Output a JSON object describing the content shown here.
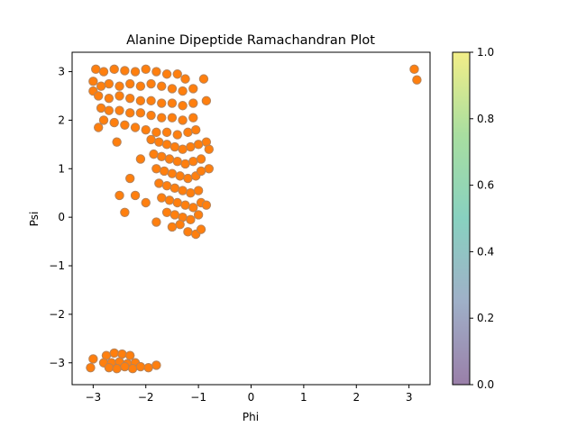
{
  "chart_data": {
    "type": "scatter",
    "title": "Alanine Dipeptide Ramachandran Plot",
    "xlabel": "Phi",
    "ylabel": "Psi",
    "xlim": [
      -3.4,
      3.4
    ],
    "ylim": [
      -3.45,
      3.4
    ],
    "xticks": [
      -3,
      -2,
      -1,
      0,
      1,
      2,
      3
    ],
    "yticks": [
      -3,
      -2,
      -1,
      0,
      1,
      2,
      3
    ],
    "grid": false,
    "point_colors": {
      "outer": "#b5835a",
      "core": "#ff7f0e"
    },
    "colorbar": {
      "range": [
        0,
        1
      ],
      "ticks": [
        "0.0",
        "0.2",
        "0.4",
        "0.6",
        "0.8",
        "1.0"
      ],
      "colors": [
        "#9a7fa9",
        "#9fb0c8",
        "#88d1c0",
        "#a8dea0",
        "#f2ee88"
      ]
    },
    "series": [
      {
        "points": [
          [
            -2.95,
            3.05
          ],
          [
            -2.8,
            3.0
          ],
          [
            -2.6,
            3.05
          ],
          [
            -2.4,
            3.02
          ],
          [
            -2.2,
            3.0
          ],
          [
            -2.0,
            3.05
          ],
          [
            -1.8,
            3.0
          ],
          [
            -1.6,
            2.95
          ],
          [
            -1.4,
            2.95
          ],
          [
            -1.25,
            2.85
          ],
          [
            -3.0,
            2.8
          ],
          [
            -2.85,
            2.7
          ],
          [
            -2.7,
            2.75
          ],
          [
            -2.5,
            2.7
          ],
          [
            -2.3,
            2.75
          ],
          [
            -2.1,
            2.7
          ],
          [
            -1.9,
            2.75
          ],
          [
            -1.7,
            2.7
          ],
          [
            -1.5,
            2.65
          ],
          [
            -1.3,
            2.6
          ],
          [
            -1.1,
            2.65
          ],
          [
            -3.0,
            2.6
          ],
          [
            -2.9,
            2.5
          ],
          [
            -2.7,
            2.45
          ],
          [
            -2.5,
            2.5
          ],
          [
            -2.3,
            2.45
          ],
          [
            -2.1,
            2.4
          ],
          [
            -1.9,
            2.4
          ],
          [
            -1.7,
            2.35
          ],
          [
            -1.5,
            2.35
          ],
          [
            -1.3,
            2.3
          ],
          [
            -1.1,
            2.35
          ],
          [
            -2.85,
            2.25
          ],
          [
            -2.7,
            2.2
          ],
          [
            -2.5,
            2.2
          ],
          [
            -2.3,
            2.15
          ],
          [
            -2.1,
            2.15
          ],
          [
            -1.9,
            2.1
          ],
          [
            -1.7,
            2.05
          ],
          [
            -1.5,
            2.05
          ],
          [
            -1.3,
            2.0
          ],
          [
            -1.1,
            2.05
          ],
          [
            -2.8,
            2.0
          ],
          [
            -2.6,
            1.95
          ],
          [
            -2.4,
            1.9
          ],
          [
            -2.2,
            1.85
          ],
          [
            -2.0,
            1.8
          ],
          [
            -1.8,
            1.75
          ],
          [
            -1.6,
            1.75
          ],
          [
            -1.4,
            1.7
          ],
          [
            -1.2,
            1.75
          ],
          [
            -1.05,
            1.8
          ],
          [
            -1.9,
            1.6
          ],
          [
            -1.75,
            1.55
          ],
          [
            -1.6,
            1.5
          ],
          [
            -1.45,
            1.45
          ],
          [
            -1.3,
            1.4
          ],
          [
            -1.15,
            1.45
          ],
          [
            -1.0,
            1.5
          ],
          [
            -1.85,
            1.3
          ],
          [
            -1.7,
            1.25
          ],
          [
            -1.55,
            1.2
          ],
          [
            -1.4,
            1.15
          ],
          [
            -1.25,
            1.1
          ],
          [
            -1.1,
            1.15
          ],
          [
            -0.95,
            1.2
          ],
          [
            -1.8,
            1.0
          ],
          [
            -1.65,
            0.95
          ],
          [
            -1.5,
            0.9
          ],
          [
            -1.35,
            0.85
          ],
          [
            -1.2,
            0.8
          ],
          [
            -1.05,
            0.85
          ],
          [
            -0.95,
            0.95
          ],
          [
            -1.75,
            0.7
          ],
          [
            -1.6,
            0.65
          ],
          [
            -1.45,
            0.6
          ],
          [
            -1.3,
            0.55
          ],
          [
            -1.15,
            0.5
          ],
          [
            -1.0,
            0.55
          ],
          [
            -1.7,
            0.4
          ],
          [
            -1.55,
            0.35
          ],
          [
            -1.4,
            0.3
          ],
          [
            -1.25,
            0.25
          ],
          [
            -1.1,
            0.2
          ],
          [
            -0.95,
            0.3
          ],
          [
            -1.6,
            0.1
          ],
          [
            -1.45,
            0.05
          ],
          [
            -1.3,
            0.0
          ],
          [
            -1.15,
            -0.05
          ],
          [
            -1.0,
            0.05
          ],
          [
            -1.5,
            -0.2
          ],
          [
            -1.35,
            -0.15
          ],
          [
            -1.2,
            -0.3
          ],
          [
            -1.05,
            -0.35
          ],
          [
            -2.1,
            1.2
          ],
          [
            -2.3,
            0.8
          ],
          [
            -2.5,
            0.45
          ],
          [
            -2.2,
            0.45
          ],
          [
            -2.0,
            0.3
          ],
          [
            -2.4,
            0.1
          ],
          [
            -1.8,
            -0.1
          ],
          [
            -2.55,
            1.55
          ],
          [
            -2.9,
            1.85
          ],
          [
            -0.85,
            2.4
          ],
          [
            -0.85,
            1.55
          ],
          [
            -0.8,
            1.4
          ],
          [
            -0.9,
            2.85
          ],
          [
            -0.85,
            0.25
          ],
          [
            -0.8,
            1.0
          ],
          [
            -0.95,
            -0.25
          ],
          [
            3.1,
            3.05
          ],
          [
            3.15,
            2.83
          ],
          [
            -2.75,
            -2.85
          ],
          [
            -2.6,
            -2.8
          ],
          [
            -2.45,
            -2.82
          ],
          [
            -2.3,
            -2.85
          ],
          [
            -2.8,
            -3.0
          ],
          [
            -2.65,
            -3.0
          ],
          [
            -2.5,
            -2.98
          ],
          [
            -2.35,
            -3.02
          ],
          [
            -2.2,
            -3.0
          ],
          [
            -2.7,
            -3.1
          ],
          [
            -2.55,
            -3.12
          ],
          [
            -2.4,
            -3.08
          ],
          [
            -2.25,
            -3.12
          ],
          [
            -2.1,
            -3.08
          ],
          [
            -1.95,
            -3.1
          ],
          [
            -1.8,
            -3.05
          ],
          [
            -3.0,
            -2.92
          ],
          [
            -3.05,
            -3.1
          ]
        ]
      }
    ]
  }
}
